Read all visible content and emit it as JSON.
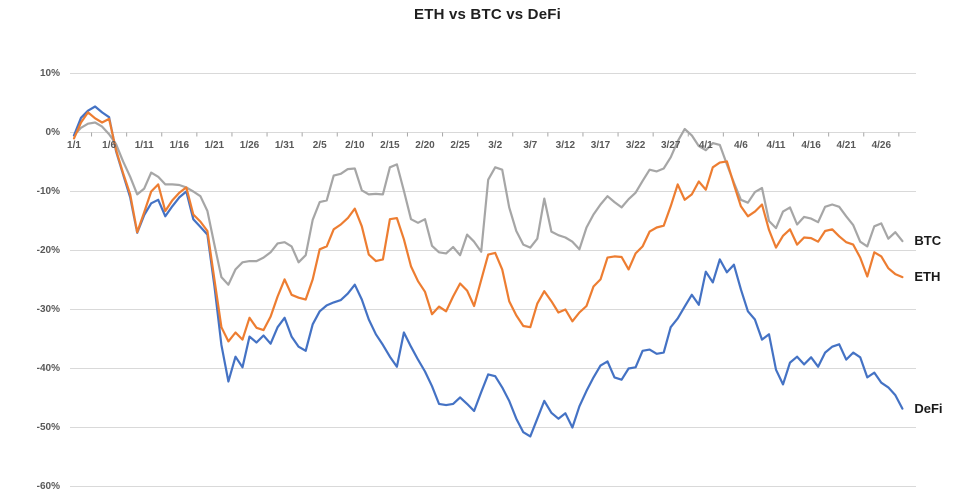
{
  "title": "ETH vs BTC vs DeFi",
  "colors": {
    "btc_line": "#a6a6a6",
    "eth_line": "#ed7d31",
    "defi_line": "#4472c4",
    "gridline": "#d9d9d9",
    "axis_tick": "#a6a6a6",
    "axis_text": "#595959",
    "title_text": "#1f1f1f",
    "series_label_text": "#1a1a1a"
  },
  "chart_data": {
    "type": "line",
    "title": "ETH vs BTC vs DeFi",
    "xlabel": "",
    "ylabel": "",
    "unit": "percent",
    "grid": "horizontal",
    "legend_position": "line-end-labels-right",
    "ylim": [
      -60,
      10
    ],
    "y_ticks": [
      10,
      0,
      -10,
      -20,
      -30,
      -40,
      -50,
      -60
    ],
    "y_tick_labels": [
      "10%",
      "0%",
      "-10%",
      "-20%",
      "-30%",
      "-40%",
      "-50%",
      "-60%"
    ],
    "x_tick_labels": [
      "1/1",
      "1/6",
      "1/11",
      "1/16",
      "1/21",
      "1/26",
      "1/31",
      "2/5",
      "2/10",
      "2/15",
      "2/20",
      "2/25",
      "3/2",
      "3/7",
      "3/12",
      "3/17",
      "3/22",
      "3/27",
      "4/1",
      "4/6",
      "4/11",
      "4/16",
      "4/21",
      "4/26"
    ],
    "x_tick_day_interval": 5,
    "dates": [
      "1/1",
      "1/2",
      "1/3",
      "1/4",
      "1/5",
      "1/6",
      "1/7",
      "1/8",
      "1/9",
      "1/10",
      "1/11",
      "1/12",
      "1/13",
      "1/14",
      "1/15",
      "1/16",
      "1/17",
      "1/18",
      "1/19",
      "1/20",
      "1/21",
      "1/22",
      "1/23",
      "1/24",
      "1/25",
      "1/26",
      "1/27",
      "1/28",
      "1/29",
      "1/30",
      "1/31",
      "2/1",
      "2/2",
      "2/3",
      "2/4",
      "2/5",
      "2/6",
      "2/7",
      "2/8",
      "2/9",
      "2/10",
      "2/11",
      "2/12",
      "2/13",
      "2/14",
      "2/15",
      "2/16",
      "2/17",
      "2/18",
      "2/19",
      "2/20",
      "2/21",
      "2/22",
      "2/23",
      "2/24",
      "2/25",
      "2/26",
      "2/27",
      "2/28",
      "3/1",
      "3/2",
      "3/3",
      "3/4",
      "3/5",
      "3/6",
      "3/7",
      "3/8",
      "3/9",
      "3/10",
      "3/11",
      "3/12",
      "3/13",
      "3/14",
      "3/15",
      "3/16",
      "3/17",
      "3/18",
      "3/19",
      "3/20",
      "3/21",
      "3/22",
      "3/23",
      "3/24",
      "3/25",
      "3/26",
      "3/27",
      "3/28",
      "3/29",
      "3/30",
      "3/31",
      "4/1",
      "4/2",
      "4/3",
      "4/4",
      "4/5",
      "4/6",
      "4/7",
      "4/8",
      "4/9",
      "4/10",
      "4/11",
      "4/12",
      "4/13",
      "4/14",
      "4/15",
      "4/16",
      "4/17",
      "4/18",
      "4/19",
      "4/20",
      "4/21",
      "4/22",
      "4/23",
      "4/24",
      "4/25",
      "4/26",
      "4/27",
      "4/28",
      "4/29"
    ],
    "series": [
      {
        "name": "BTC",
        "color": "#a6a6a6",
        "values": [
          -0.5,
          0.8,
          1.5,
          1.7,
          1.0,
          -0.3,
          -2.0,
          -4.9,
          -7.5,
          -10.5,
          -9.5,
          -6.8,
          -7.5,
          -8.8,
          -8.8,
          -8.9,
          -9.3,
          -10.0,
          -10.8,
          -13.3,
          -19.0,
          -24.5,
          -25.8,
          -23.2,
          -22.0,
          -21.8,
          -21.8,
          -21.2,
          -20.3,
          -18.8,
          -18.6,
          -19.3,
          -22.0,
          -20.8,
          -14.8,
          -11.8,
          -11.5,
          -7.3,
          -7.0,
          -6.2,
          -6.1,
          -9.8,
          -10.5,
          -10.4,
          -10.5,
          -5.9,
          -5.4,
          -9.9,
          -14.7,
          -15.3,
          -14.7,
          -19.2,
          -20.3,
          -20.5,
          -19.4,
          -20.8,
          -17.3,
          -18.5,
          -20.2,
          -8.0,
          -5.9,
          -6.3,
          -12.7,
          -16.7,
          -19.0,
          -19.5,
          -18.0,
          -11.2,
          -16.8,
          -17.4,
          -17.8,
          -18.5,
          -19.8,
          -16.1,
          -13.9,
          -12.2,
          -10.8,
          -11.8,
          -12.7,
          -11.3,
          -10.2,
          -8.2,
          -6.3,
          -6.6,
          -6.1,
          -4.2,
          -1.5,
          0.6,
          -0.5,
          -2.3,
          -3.0,
          -1.8,
          -2.1,
          -5.4,
          -8.5,
          -11.4,
          -11.9,
          -10.1,
          -9.4,
          -15.0,
          -16.2,
          -13.4,
          -12.7,
          -15.6,
          -14.3,
          -14.6,
          -15.2,
          -12.6,
          -12.2,
          -12.6,
          -14.2,
          -15.7,
          -18.5,
          -19.3,
          -15.9,
          -15.4,
          -18.0,
          -16.9,
          -18.4
        ]
      },
      {
        "name": "ETH",
        "color": "#ed7d31",
        "values": [
          -1.0,
          1.7,
          3.4,
          2.4,
          1.7,
          2.3,
          -3.0,
          -6.9,
          -10.5,
          -16.9,
          -13.5,
          -10.0,
          -8.8,
          -13.3,
          -11.5,
          -10.2,
          -9.3,
          -13.9,
          -15.1,
          -16.7,
          -24.9,
          -33.0,
          -35.4,
          -33.9,
          -35.1,
          -31.4,
          -33.1,
          -33.5,
          -31.2,
          -27.8,
          -24.9,
          -27.5,
          -28.0,
          -28.3,
          -24.9,
          -19.8,
          -19.3,
          -16.4,
          -15.6,
          -14.5,
          -12.9,
          -15.9,
          -20.7,
          -21.8,
          -21.5,
          -14.7,
          -14.5,
          -18.1,
          -22.7,
          -25.2,
          -27.0,
          -30.8,
          -29.5,
          -30.3,
          -27.8,
          -25.6,
          -26.8,
          -29.4,
          -25.0,
          -20.7,
          -20.4,
          -23.2,
          -28.6,
          -31.0,
          -32.8,
          -33.0,
          -29.0,
          -26.9,
          -28.6,
          -30.5,
          -30.0,
          -32.0,
          -30.5,
          -29.4,
          -26.1,
          -24.9,
          -21.2,
          -21.0,
          -21.1,
          -23.2,
          -20.5,
          -19.3,
          -16.8,
          -16.1,
          -15.8,
          -12.5,
          -8.8,
          -11.4,
          -10.5,
          -8.3,
          -9.7,
          -5.9,
          -5.1,
          -4.9,
          -8.8,
          -12.5,
          -14.2,
          -13.4,
          -12.2,
          -16.5,
          -19.5,
          -17.5,
          -16.4,
          -19.0,
          -17.8,
          -17.9,
          -18.5,
          -16.7,
          -16.4,
          -17.6,
          -18.6,
          -19.0,
          -21.2,
          -24.4,
          -20.3,
          -21.0,
          -23.0,
          -24.0,
          -24.5
        ]
      },
      {
        "name": "DeFi",
        "color": "#4472c4",
        "values": [
          -0.5,
          2.5,
          3.7,
          4.4,
          3.4,
          2.6,
          -3.2,
          -7.1,
          -11.0,
          -17.0,
          -14.0,
          -12.0,
          -11.4,
          -14.2,
          -12.5,
          -11.0,
          -10.0,
          -14.7,
          -16.0,
          -17.3,
          -26.0,
          -36.0,
          -42.2,
          -38.0,
          -39.8,
          -34.6,
          -35.6,
          -34.4,
          -35.8,
          -33.0,
          -31.4,
          -34.6,
          -36.3,
          -37.0,
          -32.5,
          -30.3,
          -29.3,
          -28.8,
          -28.4,
          -27.3,
          -25.8,
          -28.3,
          -31.7,
          -34.2,
          -36.0,
          -38.0,
          -39.7,
          -33.9,
          -36.3,
          -38.5,
          -40.5,
          -43.0,
          -46.0,
          -46.2,
          -46.0,
          -44.9,
          -46.0,
          -47.2,
          -44.0,
          -41.0,
          -41.3,
          -43.2,
          -45.5,
          -48.5,
          -50.8,
          -51.5,
          -48.5,
          -45.5,
          -47.5,
          -48.5,
          -47.6,
          -50.0,
          -46.4,
          -43.8,
          -41.5,
          -39.5,
          -38.8,
          -41.5,
          -41.9,
          -40.0,
          -39.8,
          -37.0,
          -36.8,
          -37.5,
          -37.3,
          -33.0,
          -31.5,
          -29.5,
          -27.5,
          -29.2,
          -23.6,
          -25.4,
          -21.5,
          -23.7,
          -22.4,
          -26.6,
          -30.3,
          -31.7,
          -35.1,
          -34.2,
          -40.2,
          -42.7,
          -39.0,
          -38.0,
          -39.3,
          -38.1,
          -39.7,
          -37.3,
          -36.3,
          -35.9,
          -38.5,
          -37.3,
          -38.1,
          -41.5,
          -40.7,
          -42.4,
          -43.2,
          -44.5,
          -46.8
        ]
      }
    ]
  }
}
